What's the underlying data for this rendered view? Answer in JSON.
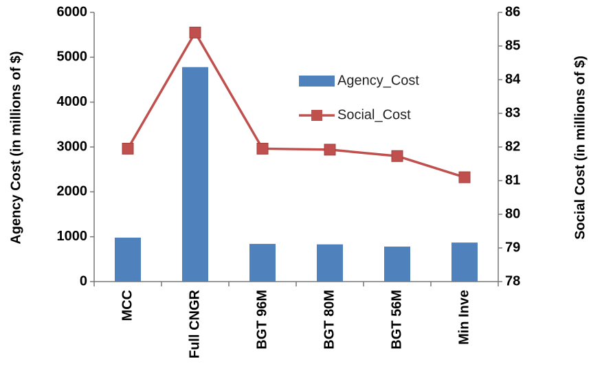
{
  "chart_data": {
    "type": "bar",
    "categories": [
      "MCC",
      "Full CNGR",
      "BGT 96M",
      "BGT 80M",
      "BGT 56M",
      "Min Inve"
    ],
    "series": [
      {
        "name": "Agency_Cost",
        "type": "bar",
        "axis": "y",
        "color": "#4f81bd",
        "values": [
          980,
          4780,
          840,
          830,
          780,
          870
        ]
      },
      {
        "name": "Social_Cost",
        "type": "line",
        "axis": "y2",
        "color": "#c0504d",
        "values": [
          81.95,
          85.4,
          81.95,
          81.92,
          81.73,
          81.1
        ]
      }
    ],
    "ylabel": "Agency Cost (in millions of $)",
    "y2label": "Social Cost (in millions of $)",
    "ylim": [
      0,
      6000
    ],
    "yticks": [
      0,
      1000,
      2000,
      3000,
      4000,
      5000,
      6000
    ],
    "y2lim": [
      78,
      86
    ],
    "y2ticks": [
      78,
      79,
      80,
      81,
      82,
      83,
      84,
      85,
      86
    ],
    "grid": false,
    "legend": "upper right"
  }
}
